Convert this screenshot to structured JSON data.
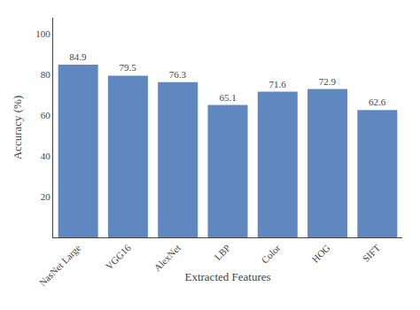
{
  "chart_data": {
    "type": "bar",
    "categories": [
      "NasNet Large",
      "VGG16",
      "AlexNet",
      "LBP",
      "Color",
      "HOG",
      "SIFT"
    ],
    "values": [
      84.9,
      79.5,
      76.3,
      65.1,
      71.6,
      72.9,
      62.6
    ],
    "color": "#6088c0",
    "xlabel": "Extracted Features",
    "ylabel": "Accuracy (%)",
    "ylim": [
      0,
      108
    ],
    "yticks": [
      20,
      40,
      60,
      80,
      100
    ],
    "grid": false,
    "data_labels": true
  }
}
